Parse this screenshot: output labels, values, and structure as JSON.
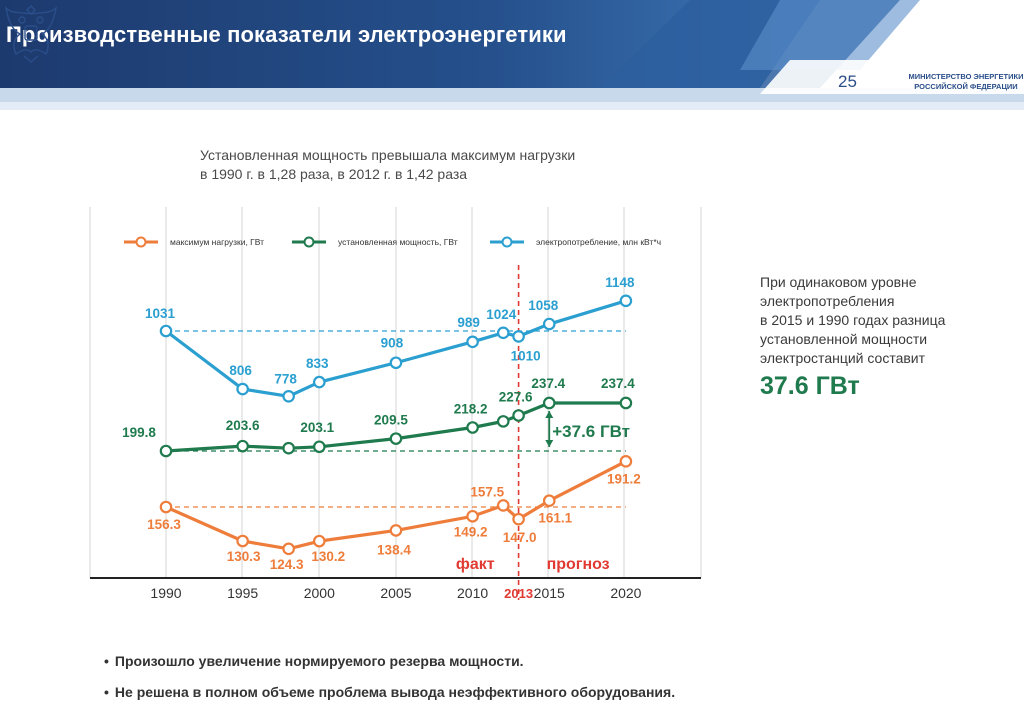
{
  "header": {
    "title": "Производственные показатели электроэнергетики",
    "page_number": "25",
    "ministry_line1": "МИНИСТЕРСТВО ЭНЕРГЕТИКИ",
    "ministry_line2": "РОССИЙСКОЙ ФЕДЕРАЦИИ"
  },
  "subtitle": {
    "line1": "Установленная мощность превышала максимум нагрузки",
    "line2": "в 1990 г. в 1,28 раза, в 2012 г. в 1,42 раза"
  },
  "side_note": {
    "line1": "При одинаковом уровне",
    "line2": "электропотребления",
    "line3": "в 2015 и 1990 годах разница",
    "line4": "установленной мощности",
    "line5": "электростанций составит",
    "value": "37.6 ГВт"
  },
  "bullets": [
    "Произошло увеличение нормируемого резерва мощности.",
    "Не решена в полном объеме проблема вывода неэффективного оборудования."
  ],
  "chart_data": {
    "type": "line",
    "x_ticks": [
      "1990",
      "1995",
      "2000",
      "2005",
      "2010",
      "2013",
      "2015",
      "2020"
    ],
    "series": [
      {
        "name": "электропотребление, млн кВт*ч",
        "color": "#2a9fd0",
        "x": [
          1990,
          1995,
          1998,
          2000,
          2005,
          2010,
          2012,
          2013,
          2015,
          2020
        ],
        "values": [
          1031,
          806,
          778,
          833,
          908,
          989,
          1024,
          1010,
          1058,
          1148
        ],
        "labels": [
          "1031",
          "806",
          "778",
          "833",
          "908",
          "989",
          "1024",
          "1010",
          "1058",
          "1148"
        ]
      },
      {
        "name": "установленная мощность, ГВт",
        "color": "#1f7a4d",
        "x": [
          1990,
          1995,
          1998,
          2000,
          2005,
          2010,
          2012,
          2013,
          2015,
          2020
        ],
        "values": [
          199.8,
          203.6,
          202,
          203.1,
          209.5,
          218.2,
          223,
          227.6,
          237.4,
          237.4
        ],
        "labels": [
          "199.8",
          "203.6",
          "",
          "203.1",
          "209.5",
          "218.2",
          "",
          "227.6",
          "237.4",
          "237.4"
        ]
      },
      {
        "name": "максимум нагрузки, ГВт",
        "color": "#ee7d3b",
        "x": [
          1990,
          1995,
          1998,
          2000,
          2005,
          2010,
          2012,
          2013,
          2015,
          2020
        ],
        "values": [
          156.3,
          130.3,
          124.3,
          130.2,
          138.4,
          149.2,
          157.5,
          147.0,
          161.1,
          191.2
        ],
        "labels": [
          "156.3",
          "130.3",
          "124.3",
          "130.2",
          "138.4",
          "149.2",
          "157.5",
          "147.0",
          "161.1",
          "191.2"
        ]
      }
    ],
    "legend_order": [
      "максимум нагрузки, ГВт",
      "установленная мощность, ГВт",
      "электропотребление, млн кВт*ч"
    ],
    "legend_position": "top",
    "divider_year": 2013,
    "fact_label": "факт",
    "forecast_label": "прогноз",
    "difference_label": "+37.6 ГВт",
    "divider_color": "#e03a32"
  }
}
